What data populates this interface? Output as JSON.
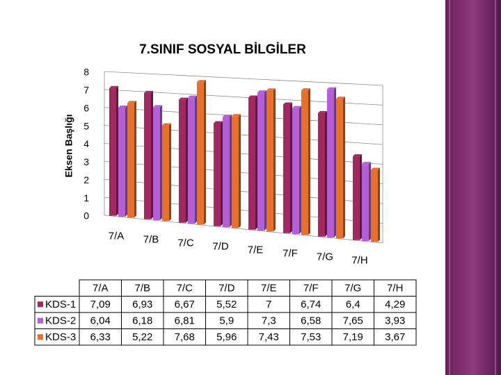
{
  "chart_data": {
    "type": "bar",
    "title": "7.SINIF SOSYAL BİLGİLER",
    "y_label": "Eksen Başlığı",
    "categories": [
      "7/A",
      "7/B",
      "7/C",
      "7/D",
      "7/E",
      "7/F",
      "7/G",
      "7/H"
    ],
    "series": [
      {
        "name": "KDS-1",
        "color": "#a0295f",
        "values": [
          7.09,
          6.93,
          6.67,
          5.52,
          7,
          6.74,
          6.4,
          4.29
        ],
        "value_labels": [
          "7,09",
          "6,93",
          "6,67",
          "5,52",
          "7",
          "6,74",
          "6,4",
          "4,29"
        ]
      },
      {
        "name": "KDS-2",
        "color": "#b45fd8",
        "values": [
          6.04,
          6.18,
          6.81,
          5.9,
          7.3,
          6.58,
          7.65,
          3.93
        ],
        "value_labels": [
          "6,04",
          "6,18",
          "6,81",
          "5,9",
          "7,3",
          "6,58",
          "7,65",
          "3,93"
        ]
      },
      {
        "name": "KDS-3",
        "color": "#e8702a",
        "values": [
          6.33,
          5.22,
          7.68,
          5.96,
          7.43,
          7.53,
          7.19,
          3.67
        ],
        "value_labels": [
          "6,33",
          "5,22",
          "7,68",
          "5,96",
          "7,43",
          "7,53",
          "7,19",
          "3,67"
        ]
      }
    ],
    "ylim": [
      0,
      8
    ],
    "yticks": [
      0,
      1,
      2,
      3,
      4,
      5,
      6,
      7,
      8
    ],
    "grid": true
  }
}
